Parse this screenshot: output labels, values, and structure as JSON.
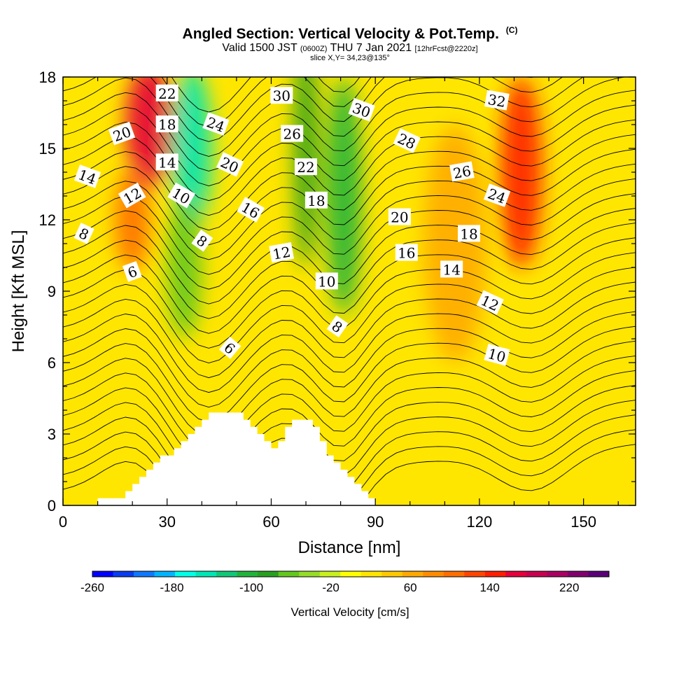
{
  "title": {
    "main": "Angled Section: Vertical Velocity & Pot.Temp.",
    "main_unit": "(C)",
    "valid_prefix": "Valid 1500 JST",
    "valid_z": "(0600Z)",
    "valid_date": "THU 7 Jan 2021",
    "fcst": "[12hrFcst@2220z]",
    "slice": "slice X,Y= 34,23@135°"
  },
  "chart_data": {
    "type": "heatmap",
    "xlabel": "Distance [nm]",
    "ylabel": "Height [Kft MSL]",
    "xlim": [
      0,
      165
    ],
    "ylim": [
      0,
      18
    ],
    "xticks": [
      0,
      30,
      60,
      90,
      120,
      150
    ],
    "yticks": [
      0,
      3,
      6,
      9,
      12,
      15,
      18
    ],
    "colorbar": {
      "label": "Vertical Velocity [cm/s]",
      "range": [
        -260,
        260
      ],
      "tick_values": [
        -260,
        -180,
        -100,
        -20,
        60,
        140,
        220
      ],
      "colors": [
        "#0000ff",
        "#0a3cf0",
        "#0f78ff",
        "#00b4ff",
        "#00ffe6",
        "#00e6b4",
        "#10c878",
        "#20b43c",
        "#28a020",
        "#64c81e",
        "#96dc28",
        "#c8f01e",
        "#ffff00",
        "#ffe600",
        "#ffc800",
        "#ffaa00",
        "#ff8c00",
        "#ff6e00",
        "#ff4600",
        "#ff1e00",
        "#e6003c",
        "#c80050",
        "#aa0064",
        "#82006e",
        "#5a0078"
      ]
    },
    "series": [
      {
        "name": "Vertical Velocity [cm/s]",
        "kind": "filled-contour",
        "features": [
          {
            "x": 25,
            "z": 16,
            "value": 160
          },
          {
            "x": 20,
            "z": 12,
            "value": 100
          },
          {
            "x": 37,
            "z": 15,
            "value": -150
          },
          {
            "x": 35,
            "z": 10,
            "value": -60
          },
          {
            "x": 70,
            "z": 15,
            "value": -90
          },
          {
            "x": 81,
            "z": 13,
            "value": -110
          },
          {
            "x": 132,
            "z": 14,
            "value": 150
          },
          {
            "x": 113,
            "z": 11,
            "value": 70
          },
          {
            "x": 10,
            "z": 4,
            "value": 20
          },
          {
            "x": 150,
            "z": 4,
            "value": 20
          }
        ]
      },
      {
        "name": "Pot.Temp. (C)",
        "kind": "contour-lines",
        "levels": [
          6,
          8,
          10,
          12,
          14,
          16,
          18,
          20,
          22,
          24,
          26,
          28,
          30,
          32
        ]
      }
    ],
    "terrain": [
      [
        10,
        0
      ],
      [
        10,
        0.3
      ],
      [
        18,
        0.3
      ],
      [
        18,
        0.6
      ],
      [
        20,
        0.6
      ],
      [
        20,
        0.9
      ],
      [
        22,
        0.9
      ],
      [
        22,
        1.2
      ],
      [
        24,
        1.2
      ],
      [
        24,
        1.5
      ],
      [
        26,
        1.5
      ],
      [
        26,
        1.8
      ],
      [
        28,
        1.8
      ],
      [
        28,
        2.1
      ],
      [
        32,
        2.1
      ],
      [
        32,
        2.4
      ],
      [
        34,
        2.4
      ],
      [
        34,
        2.7
      ],
      [
        36,
        2.7
      ],
      [
        36,
        3.0
      ],
      [
        38,
        3.0
      ],
      [
        38,
        3.3
      ],
      [
        40,
        3.3
      ],
      [
        40,
        3.6
      ],
      [
        42,
        3.6
      ],
      [
        42,
        3.9
      ],
      [
        52,
        3.9
      ],
      [
        52,
        3.6
      ],
      [
        54,
        3.6
      ],
      [
        54,
        3.3
      ],
      [
        56,
        3.3
      ],
      [
        56,
        3.0
      ],
      [
        58,
        3.0
      ],
      [
        58,
        2.7
      ],
      [
        60,
        2.7
      ],
      [
        60,
        2.4
      ],
      [
        62,
        2.4
      ],
      [
        62,
        2.7
      ],
      [
        64,
        2.7
      ],
      [
        64,
        3.3
      ],
      [
        66,
        3.3
      ],
      [
        66,
        3.6
      ],
      [
        72,
        3.6
      ],
      [
        72,
        3.3
      ],
      [
        74,
        3.3
      ],
      [
        74,
        2.7
      ],
      [
        76,
        2.7
      ],
      [
        76,
        2.1
      ],
      [
        78,
        2.1
      ],
      [
        78,
        1.8
      ],
      [
        80,
        1.8
      ],
      [
        80,
        1.5
      ],
      [
        82,
        1.5
      ],
      [
        82,
        1.2
      ],
      [
        84,
        1.2
      ],
      [
        84,
        0.9
      ],
      [
        86,
        0.9
      ],
      [
        86,
        0.6
      ],
      [
        88,
        0.6
      ],
      [
        88,
        0.3
      ],
      [
        90,
        0.3
      ],
      [
        90,
        0
      ]
    ],
    "contour_labels": [
      {
        "text": "22",
        "x": 30,
        "z": 17.3,
        "rot": 0
      },
      {
        "text": "30",
        "x": 63,
        "z": 17.2,
        "rot": 0
      },
      {
        "text": "32",
        "x": 125,
        "z": 17.0,
        "rot": 10
      },
      {
        "text": "30",
        "x": 86,
        "z": 16.6,
        "rot": 20
      },
      {
        "text": "20",
        "x": 17,
        "z": 15.6,
        "rot": -20
      },
      {
        "text": "18",
        "x": 30,
        "z": 16.0,
        "rot": 0
      },
      {
        "text": "24",
        "x": 44,
        "z": 16.0,
        "rot": 20
      },
      {
        "text": "26",
        "x": 66,
        "z": 15.6,
        "rot": 0
      },
      {
        "text": "28",
        "x": 99,
        "z": 15.3,
        "rot": 25
      },
      {
        "text": "14",
        "x": 30,
        "z": 14.4,
        "rot": 0
      },
      {
        "text": "20",
        "x": 48,
        "z": 14.3,
        "rot": 25
      },
      {
        "text": "22",
        "x": 70,
        "z": 14.2,
        "rot": 0
      },
      {
        "text": "26",
        "x": 115,
        "z": 14.0,
        "rot": -10
      },
      {
        "text": "14",
        "x": 7,
        "z": 13.8,
        "rot": 20
      },
      {
        "text": "10",
        "x": 34,
        "z": 13.0,
        "rot": 30
      },
      {
        "text": "12",
        "x": 20,
        "z": 13.0,
        "rot": -30
      },
      {
        "text": "24",
        "x": 125,
        "z": 13.0,
        "rot": 20
      },
      {
        "text": "18",
        "x": 73,
        "z": 12.8,
        "rot": 0
      },
      {
        "text": "16",
        "x": 54,
        "z": 12.4,
        "rot": 30
      },
      {
        "text": "20",
        "x": 97,
        "z": 12.1,
        "rot": 0
      },
      {
        "text": "8",
        "x": 6,
        "z": 11.4,
        "rot": 25
      },
      {
        "text": "18",
        "x": 117,
        "z": 11.4,
        "rot": 0
      },
      {
        "text": "8",
        "x": 40,
        "z": 11.1,
        "rot": 35
      },
      {
        "text": "16",
        "x": 99,
        "z": 10.6,
        "rot": 0
      },
      {
        "text": "12",
        "x": 63,
        "z": 10.6,
        "rot": -10
      },
      {
        "text": "14",
        "x": 112,
        "z": 9.9,
        "rot": 0
      },
      {
        "text": "6",
        "x": 20,
        "z": 9.8,
        "rot": -20
      },
      {
        "text": "10",
        "x": 76,
        "z": 9.4,
        "rot": 0
      },
      {
        "text": "12",
        "x": 123,
        "z": 8.5,
        "rot": 25
      },
      {
        "text": "8",
        "x": 79,
        "z": 7.5,
        "rot": 35
      },
      {
        "text": "10",
        "x": 125,
        "z": 6.3,
        "rot": 15
      },
      {
        "text": "6",
        "x": 48,
        "z": 6.6,
        "rot": 40
      }
    ]
  }
}
